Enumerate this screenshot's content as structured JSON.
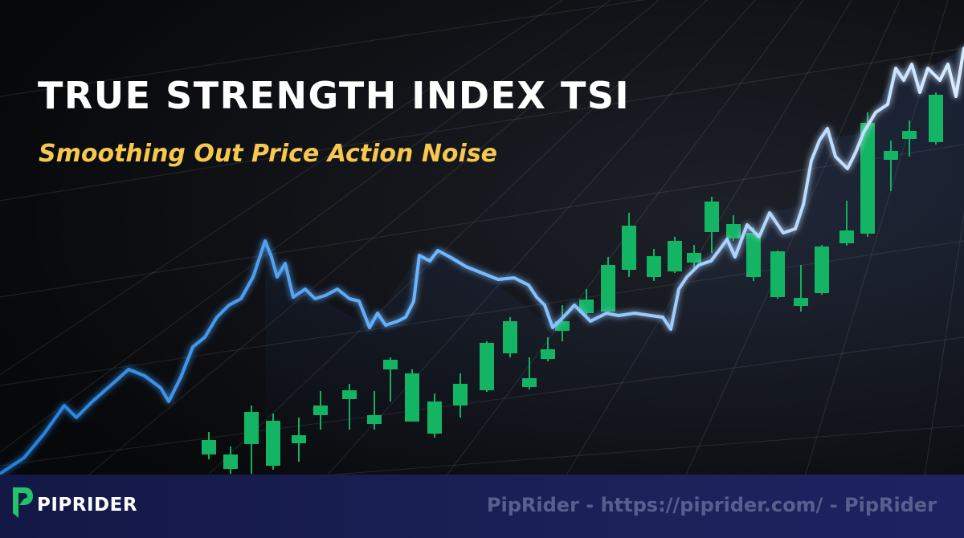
{
  "header": {
    "title": "TRUE STRENGTH INDEX TSI",
    "subtitle": "Smoothing Out Price Action Noise"
  },
  "footer": {
    "brand": "PIPRIDER",
    "credit": "PipRider - https://piprider.com/ - PipRider"
  }
}
